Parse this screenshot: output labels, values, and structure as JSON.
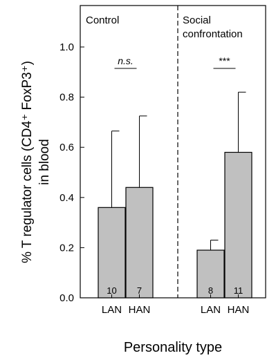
{
  "chart_data": {
    "type": "bar",
    "ylabel_line1": "% T regulator cells (CD4⁺ FoxP3⁺)",
    "ylabel_line2": "in blood",
    "xlabel": "Personality type",
    "ylim": [
      0,
      1.0
    ],
    "yticks": [
      "0.0",
      "0.2",
      "0.4",
      "0.6",
      "0.8",
      "1.0"
    ],
    "grid": false,
    "groups": [
      {
        "label": "Control",
        "label_lines": [
          "Control"
        ],
        "significance": "n.s.",
        "bars": [
          {
            "category": "LAN",
            "value": 0.36,
            "error_upper": 0.665,
            "n": "10"
          },
          {
            "category": "HAN",
            "value": 0.44,
            "error_upper": 0.725,
            "n": "7"
          }
        ]
      },
      {
        "label": "Social confrontation",
        "label_lines": [
          "Social",
          "confrontation"
        ],
        "significance": "***",
        "bars": [
          {
            "category": "LAN",
            "value": 0.19,
            "error_upper": 0.23,
            "n": "8"
          },
          {
            "category": "HAN",
            "value": 0.58,
            "error_upper": 0.82,
            "n": "11"
          }
        ]
      }
    ],
    "colors": {
      "bar_fill": "#c0c0c0",
      "bar_stroke": "#000000",
      "divider": "#000000"
    }
  }
}
